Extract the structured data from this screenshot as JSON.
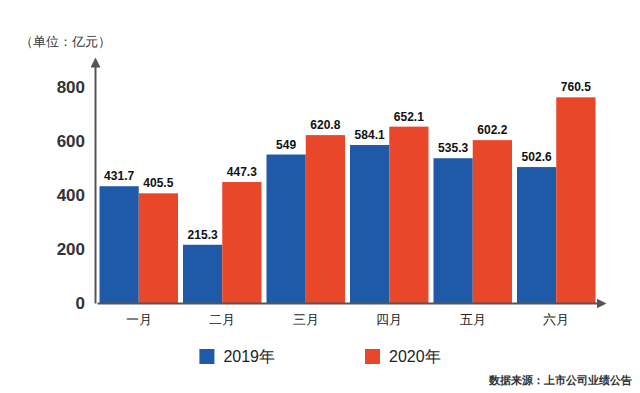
{
  "chart_data": {
    "type": "bar",
    "ylabel": "（单位：亿元）",
    "annotations": [
      "数据来源：上市公司业绩公告"
    ],
    "categories": [
      "一月",
      "二月",
      "三月",
      "四月",
      "五月",
      "六月"
    ],
    "series": [
      {
        "name": "2019年",
        "color": "#1e5aa8",
        "values": [
          431.7,
          215.3,
          549,
          584.1,
          535.3,
          502.6
        ]
      },
      {
        "name": "2020年",
        "color": "#e8472a",
        "values": [
          405.5,
          447.3,
          620.8,
          652.1,
          602.2,
          760.5
        ]
      }
    ],
    "ylim": [
      0,
      880
    ],
    "yticks": [
      0,
      200,
      400,
      600,
      800
    ],
    "grid": false,
    "data_labels": true,
    "legend": "bottom"
  }
}
